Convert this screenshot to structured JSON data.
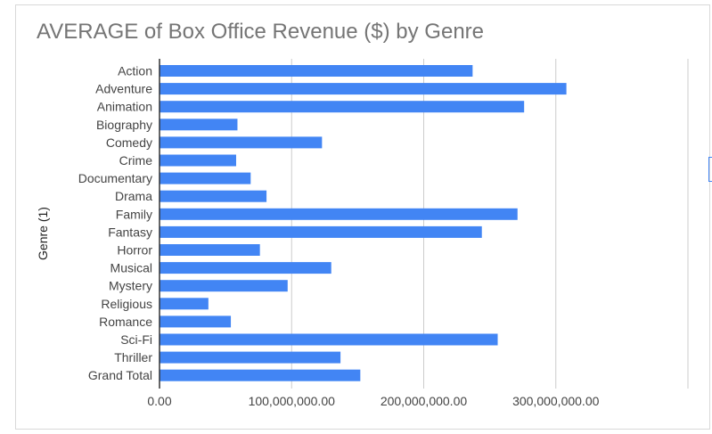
{
  "chart_data": {
    "type": "bar",
    "orientation": "horizontal",
    "title": "AVERAGE of Box Office Revenue ($) by Genre",
    "ylabel": "Genre (1)",
    "xlabel": "",
    "categories": [
      "Action",
      "Adventure",
      "Animation",
      "Biography",
      "Comedy",
      "Crime",
      "Documentary",
      "Drama",
      "Family",
      "Fantasy",
      "Horror",
      "Musical",
      "Mystery",
      "Religious",
      "Romance",
      "Sci-Fi",
      "Thriller",
      "Grand Total"
    ],
    "values": [
      237000000,
      308000000,
      276000000,
      59000000,
      123000000,
      58000000,
      69000000,
      81000000,
      271000000,
      244000000,
      76000000,
      130000000,
      97000000,
      37000000,
      54000000,
      256000000,
      137000000,
      152000000
    ],
    "xlim": [
      0,
      400000000
    ],
    "xticks": [
      0,
      100000000,
      200000000,
      300000000,
      400000000
    ],
    "xtick_labels": [
      "0.00",
      "100,000,000.00",
      "200,000,000.00",
      "300,000,000.00",
      ""
    ],
    "grid": true,
    "legend": "none",
    "bar_color": "#4285f4",
    "grid_color": "#cccccc",
    "axis_color": "#333333"
  }
}
